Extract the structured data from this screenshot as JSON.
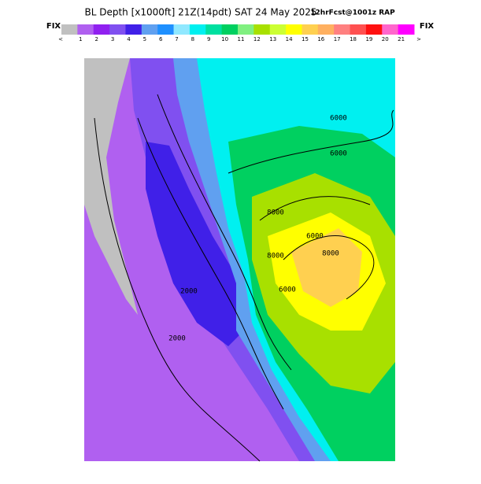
{
  "header": {
    "title": "BL Depth [x1000ft] 21Z(14pdt) SAT 24 May 2025",
    "run": "12hrFcst@1001z RAP",
    "fix_left": "FIX",
    "fix_right": "FIX"
  },
  "colorbar": {
    "labels": [
      "<",
      "1",
      "2",
      "3",
      "4",
      "5",
      "6",
      "7",
      "8",
      "9",
      "10",
      "11",
      "12",
      "13",
      "14",
      "15",
      "16",
      "17",
      "18",
      "19",
      "20",
      "21",
      ">"
    ],
    "colors": [
      "#c0c0c0",
      "#b060f0",
      "#9020f0",
      "#8050f0",
      "#4020e8",
      "#60a0f0",
      "#1e90ff",
      "#90e8ff",
      "#00f0f0",
      "#00e0a0",
      "#00d060",
      "#80f080",
      "#a8e000",
      "#ccff33",
      "#ffff00",
      "#ffd050",
      "#ffb060",
      "#ff8080",
      "#ff5050",
      "#ff1010",
      "#ff66cc",
      "#ff00ff"
    ]
  },
  "map": {
    "contour_labels": [
      "6000",
      "6000",
      "8000",
      "6000",
      "8000",
      "8000",
      "6000",
      "2000",
      "2000"
    ]
  }
}
